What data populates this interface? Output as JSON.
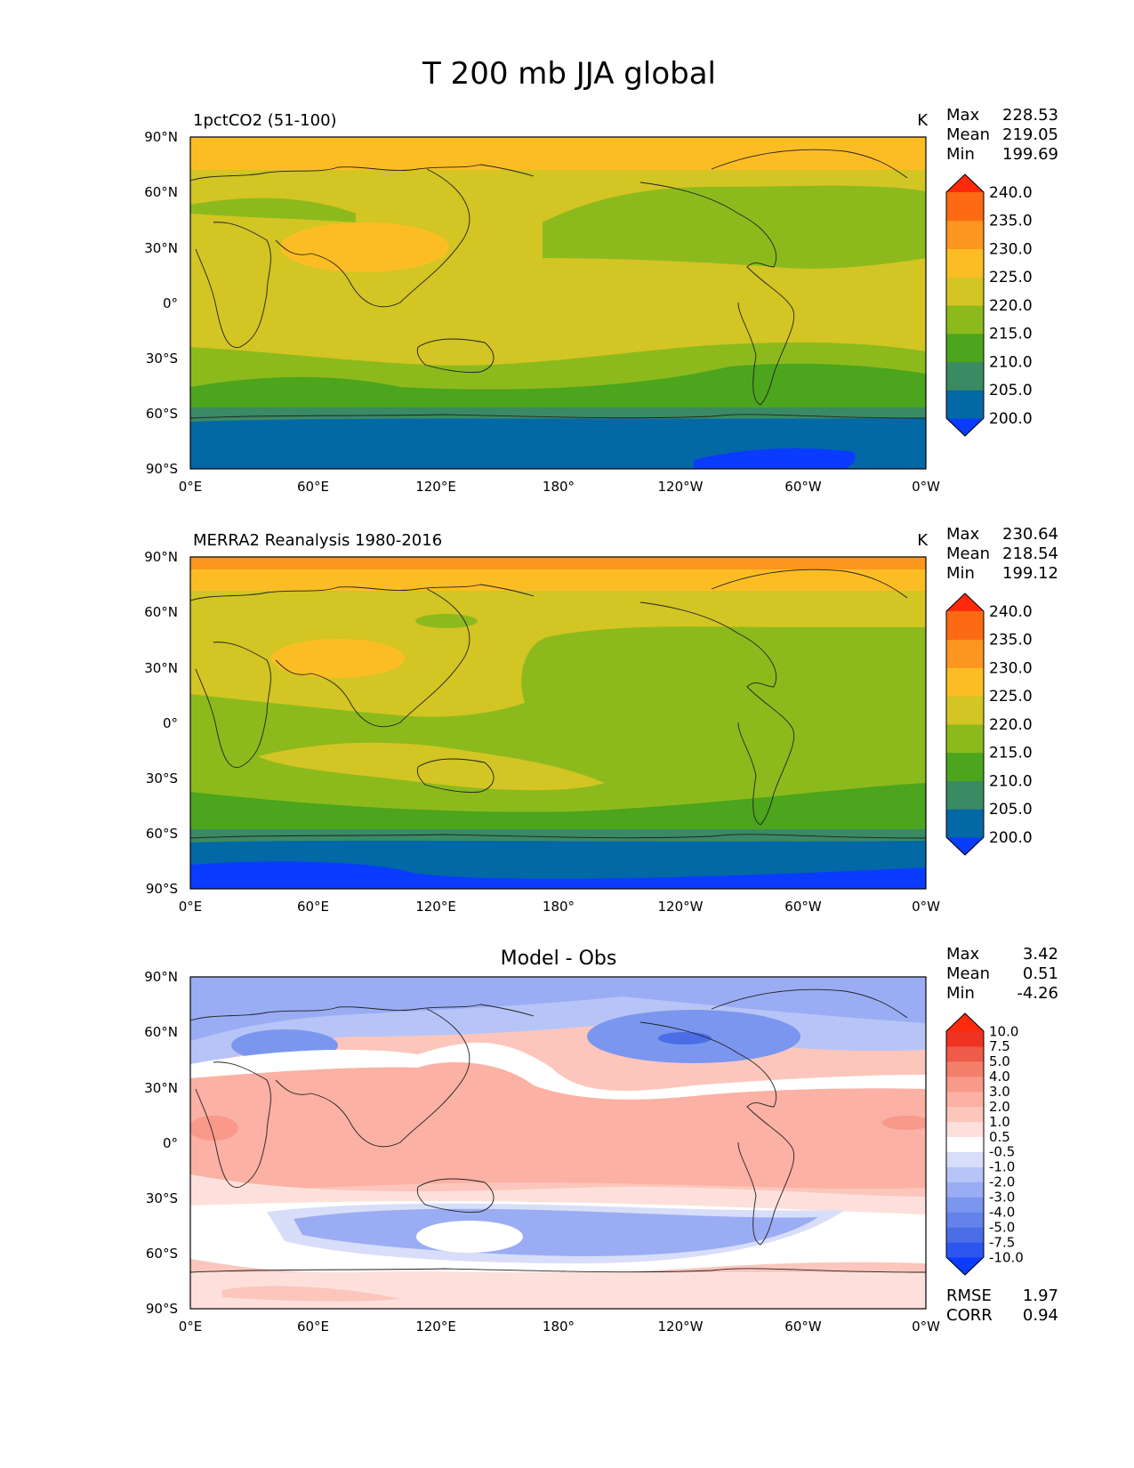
{
  "title": "T 200 mb JJA global",
  "lat_ticks": [
    "90°N",
    "60°N",
    "30°N",
    "0°",
    "30°S",
    "60°S",
    "90°S"
  ],
  "lon_ticks": [
    "0°E",
    "60°E",
    "120°E",
    "180°",
    "120°W",
    "60°W",
    "0°W"
  ],
  "chart_data": [
    {
      "type": "contour-map",
      "id": "model",
      "title_left": "1pctCO2 (51-100)",
      "title_center": "",
      "units": "K",
      "stats": {
        "max_label": "Max",
        "max": "228.53",
        "mean_label": "Mean",
        "mean": "219.05",
        "min_label": "Min",
        "min": "199.69"
      },
      "colorbar": {
        "labels": [
          "200.0",
          "205.0",
          "210.0",
          "215.0",
          "220.0",
          "225.0",
          "230.0",
          "235.0",
          "240.0"
        ],
        "colors": [
          "#0a3cff",
          "#0368a6",
          "#3a8a64",
          "#4ca51c",
          "#8cba1c",
          "#d2c524",
          "#fcbd24",
          "#fc961e",
          "#fc6a14",
          "#ff2a0c"
        ]
      },
      "bands": [
        {
          "lat_top": 90,
          "lat_bottom": 73,
          "level": "225-230"
        },
        {
          "lat_top": 73,
          "lat_bottom": 62,
          "level": "220-225"
        },
        {
          "lat_top": 62,
          "lat_bottom": -25,
          "level": "220-225"
        },
        {
          "lat_top": -25,
          "lat_bottom": -38,
          "level": "215-220"
        },
        {
          "lat_top": -38,
          "lat_bottom": -58,
          "level": "210-215"
        },
        {
          "lat_top": -58,
          "lat_bottom": -65,
          "level": "205-210"
        },
        {
          "lat_top": -65,
          "lat_bottom": -90,
          "level": "200-205"
        }
      ],
      "xlim": [
        0,
        360
      ],
      "ylim": [
        -90,
        90
      ]
    },
    {
      "type": "contour-map",
      "id": "obs",
      "title_left": "MERRA2 Reanalysis 1980-2016",
      "title_center": "",
      "units": "K",
      "stats": {
        "max_label": "Max",
        "max": "230.64",
        "mean_label": "Mean",
        "mean": "218.54",
        "min_label": "Min",
        "min": "199.12"
      },
      "colorbar": {
        "labels": [
          "200.0",
          "205.0",
          "210.0",
          "215.0",
          "220.0",
          "225.0",
          "230.0",
          "235.0",
          "240.0"
        ],
        "colors": [
          "#0a3cff",
          "#0368a6",
          "#3a8a64",
          "#4ca51c",
          "#8cba1c",
          "#d2c524",
          "#fcbd24",
          "#fc961e",
          "#fc6a14",
          "#ff2a0c"
        ]
      },
      "xlim": [
        0,
        360
      ],
      "ylim": [
        -90,
        90
      ]
    },
    {
      "type": "contour-map",
      "id": "diff",
      "title_left": "",
      "title_center": "Model - Obs",
      "units": "",
      "stats": {
        "max_label": "Max",
        "max": "3.42",
        "mean_label": "Mean",
        "mean": "0.51",
        "min_label": "Min",
        "min": "-4.26"
      },
      "metrics": {
        "rmse_label": "RMSE",
        "rmse": "1.97",
        "corr_label": "CORR",
        "corr": "0.94"
      },
      "colorbar": {
        "labels": [
          "-10.0",
          "-7.5",
          "-5.0",
          "-4.0",
          "-3.0",
          "-2.0",
          "-1.0",
          "-0.5",
          "0.5",
          "1.0",
          "2.0",
          "3.0",
          "4.0",
          "5.0",
          "7.5",
          "10.0"
        ],
        "colors": [
          "#0a3cff",
          "#2d55f0",
          "#4b6ee6",
          "#6482ea",
          "#7b96ee",
          "#9aacf3",
          "#b7c4f7",
          "#d8def9",
          "#ffffff",
          "#fde0db",
          "#fcc6bc",
          "#fbb1a3",
          "#f8998a",
          "#f47e6c",
          "#f05a48",
          "#ef3222",
          "#ff2a0c"
        ]
      },
      "xlim": [
        0,
        360
      ],
      "ylim": [
        -90,
        90
      ]
    }
  ]
}
